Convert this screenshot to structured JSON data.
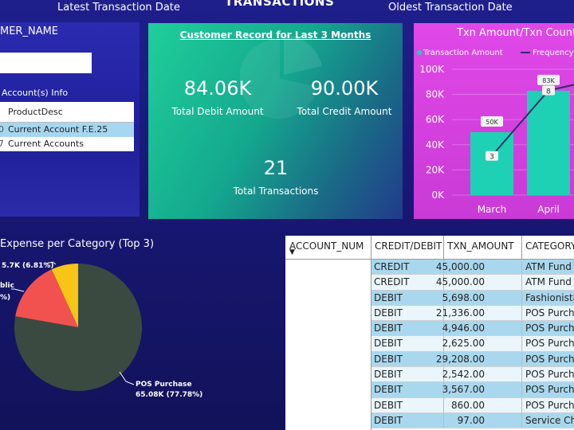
{
  "header": {
    "latest_label": "Latest Transaction Date",
    "title": "TRANSACTIONS",
    "oldest_label": "Oldest Transaction Date"
  },
  "customer_panel": {
    "title": "MER_NAME",
    "input_value": "",
    "accounts_label": "Account(s) Info",
    "table_header": "ProductDesc",
    "rows": [
      {
        "lead": "0",
        "text": "Current Account F.E.25",
        "selected": true
      },
      {
        "lead": "7",
        "text": "Current Accounts",
        "selected": false
      }
    ]
  },
  "record_card": {
    "title": "Customer Record for Last 3 Months",
    "debit_value": "84.06K",
    "debit_label": "Total Debit Amount",
    "credit_value": "90.00K",
    "credit_label": "Total Credit Amount",
    "txn_value": "21",
    "txn_label": "Total Transactions"
  },
  "txn_chart": {
    "title": "Txn Amount/Txn Count",
    "legend_amount": "Transaction Amount",
    "legend_frequency": "Frequency",
    "colors": {
      "bar": "#1fd1b4",
      "line": "#2b2f66",
      "marker": "#1fd1b4"
    },
    "chart_data": {
      "type": "bar",
      "categories": [
        "March",
        "April"
      ],
      "series": [
        {
          "name": "Transaction Amount",
          "values": [
            50000,
            83000
          ],
          "data_labels": [
            "50K",
            "83K"
          ]
        },
        {
          "name": "Frequency",
          "values": [
            3,
            8
          ]
        }
      ],
      "yticks": [
        "0K",
        "20K",
        "40K",
        "60K",
        "80K",
        "100K"
      ],
      "ylim": [
        0,
        100000
      ]
    }
  },
  "expense_pie": {
    "title": "Expense per  Category (Top 3)",
    "colors": [
      "#3a4a40",
      "#f2524f",
      "#f6c516"
    ],
    "chart_data": {
      "type": "pie",
      "slices": [
        {
          "value": 77.78,
          "label_line1": "POS Purchase",
          "label_line2": "65.08K (77.78%)"
        },
        {
          "value": 15.41,
          "label_line1": "blic",
          "label_line2": "%)"
        },
        {
          "value": 6.81,
          "label_line1": "5.7K (6.81%)",
          "label_line2": ""
        }
      ]
    }
  },
  "tx_table": {
    "headers": [
      "ACCOUNT_NUM",
      "CREDIT/DEBIT",
      "TXN_AMOUNT",
      "CATEGORY"
    ],
    "rows": [
      [
        "CREDIT",
        "45,000.00",
        "ATM Fund"
      ],
      [
        "CREDIT",
        "45,000.00",
        "ATM Fund"
      ],
      [
        "DEBIT",
        "5,698.00",
        "Fashionista"
      ],
      [
        "DEBIT",
        "21,336.00",
        "POS Purch"
      ],
      [
        "DEBIT",
        "4,946.00",
        "POS Purch"
      ],
      [
        "DEBIT",
        "2,625.00",
        "POS Purch"
      ],
      [
        "DEBIT",
        "29,208.00",
        "POS Purch"
      ],
      [
        "DEBIT",
        "2,542.00",
        "POS Purch"
      ],
      [
        "DEBIT",
        "3,567.00",
        "POS Purch"
      ],
      [
        "DEBIT",
        "860.00",
        "POS Purch"
      ],
      [
        "DEBIT",
        "97.00",
        "Service Ch"
      ]
    ]
  }
}
